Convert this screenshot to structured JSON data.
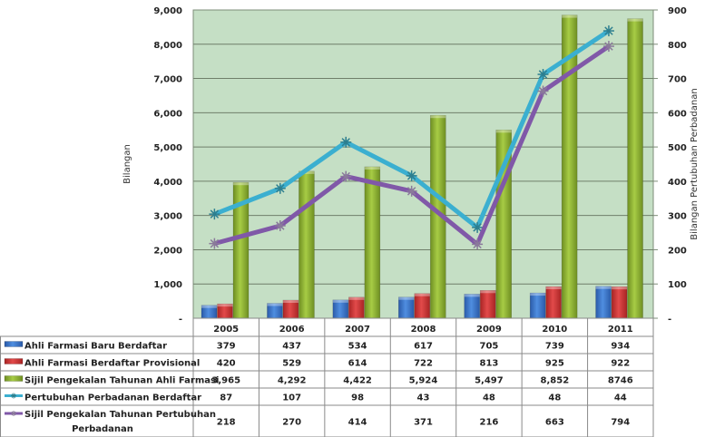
{
  "chart_data": {
    "type": "bar",
    "title": "",
    "categories": [
      "2005",
      "2006",
      "2007",
      "2008",
      "2009",
      "2010",
      "2011"
    ],
    "ylabel": "Bilangan",
    "y2label": "Bilangan Pertubuhan Perbadanan",
    "ylim": [
      0,
      9000
    ],
    "y2lim": [
      0,
      900
    ],
    "yticks": [
      "-",
      "1,000",
      "2,000",
      "3,000",
      "4,000",
      "5,000",
      "6,000",
      "7,000",
      "8,000",
      "9,000"
    ],
    "y2ticks": [
      "-",
      "100",
      "200",
      "300",
      "400",
      "500",
      "600",
      "700",
      "800",
      "900"
    ],
    "grid": true,
    "legend": "data-table-bottom",
    "series": [
      {
        "name": "Ahli Farmasi Baru Berdaftar",
        "type": "bar",
        "axis": "left",
        "color": "#3b73c8",
        "values": [
          379,
          437,
          534,
          617,
          705,
          739,
          934
        ],
        "labels": [
          "379",
          "437",
          "534",
          "617",
          "705",
          "739",
          "934"
        ]
      },
      {
        "name": "Ahli Farmasi Berdaftar Provisional",
        "type": "bar",
        "axis": "left",
        "color": "#d03a3a",
        "values": [
          420,
          529,
          614,
          722,
          813,
          925,
          922
        ],
        "labels": [
          "420",
          "529",
          "614",
          "722",
          "813",
          "925",
          "922"
        ]
      },
      {
        "name": "Sijil Pengekalan Tahunan Ahli Farmasi",
        "type": "bar",
        "axis": "left",
        "color": "#9bbb3a",
        "values": [
          3965,
          4292,
          4422,
          5924,
          5497,
          8852,
          8746
        ],
        "labels": [
          "3,965",
          "4,292",
          "4,422",
          "5,924",
          "5,497",
          "8,852",
          "8746"
        ]
      },
      {
        "name": "Pertubuhan Perbadanan Berdaftar",
        "type": "line",
        "axis": "right",
        "color": "#3bafd0",
        "marker": "asterisk",
        "values": [
          87,
          107,
          98,
          43,
          48,
          48,
          44
        ],
        "plotted_values": [
          304,
          379,
          514,
          416,
          265,
          712,
          839
        ],
        "labels": [
          "87",
          "107",
          "98",
          "43",
          "48",
          "48",
          "44"
        ]
      },
      {
        "name": "Sijil Pengekalan Tahunan Pertubuhan Perbadanan",
        "type": "line",
        "axis": "right",
        "color": "#8058a8",
        "marker": "asterisk",
        "values": [
          218,
          270,
          414,
          371,
          216,
          663,
          794
        ],
        "labels": [
          "218",
          "270",
          "414",
          "371",
          "216",
          "663",
          "794"
        ]
      }
    ],
    "colors": {
      "plot_background": "#c5dfc5",
      "gridline": "#6f7f6a"
    }
  }
}
